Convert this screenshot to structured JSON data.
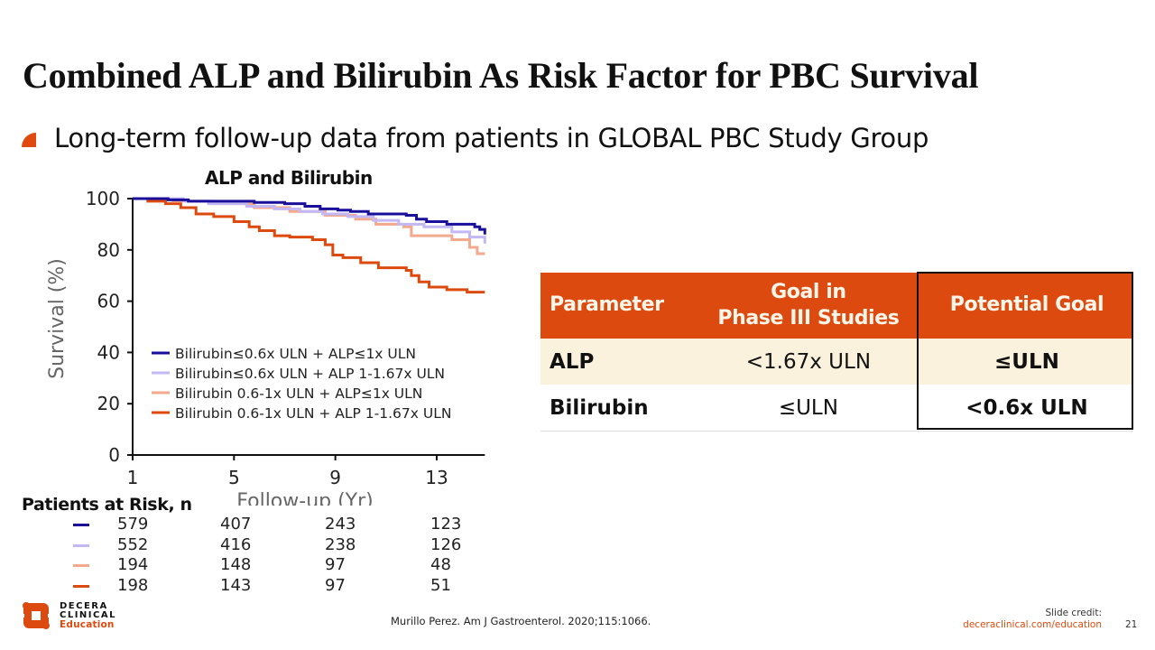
{
  "slide": {
    "title": "Combined ALP and Bilirubin As Risk Factor for PBC Survival",
    "bullet": "Long-term follow-up data from patients in GLOBAL PBC Study Group",
    "citation": "Murillo Perez. Am J Gastroenterol. 2020;115:1066.",
    "credit_label": "Slide credit:",
    "credit_url": "deceraclinical.com/education",
    "page_number": "21",
    "logo": {
      "line1": "DECERA",
      "line2": "CLINICAL",
      "line3": "Education"
    },
    "accent_color": "#dd4a0f"
  },
  "chart_data": {
    "type": "line",
    "subtype": "kaplan-meier-step",
    "title": "ALP and Bilirubin",
    "xlabel": "Follow-up (Yr)",
    "ylabel": "Survival (%)",
    "xlim": [
      1,
      14.9
    ],
    "ylim": [
      0,
      100
    ],
    "x_ticks": [
      1,
      5,
      9,
      13
    ],
    "y_ticks": [
      0,
      20,
      40,
      60,
      80,
      100
    ],
    "grid": false,
    "legend_position": "bottom-left inside",
    "series": [
      {
        "name": "Bilirubin≤0.6x ULN + ALP≤1x ULN",
        "color": "#1a0f9a",
        "x": [
          1,
          2.4,
          3.2,
          5.8,
          7.0,
          7.8,
          8.4,
          9.1,
          9.6,
          10.3,
          11.8,
          12.2,
          12.6,
          13.4,
          14.5,
          14.7,
          14.9
        ],
        "y": [
          100,
          99.5,
          99,
          98.5,
          98,
          97,
          96,
          95.5,
          95,
          94,
          93.5,
          92,
          91,
          90,
          89,
          88,
          86
        ]
      },
      {
        "name": "Bilirubin≤0.6x ULN + ALP 1-1.67x ULN",
        "color": "#c3b8f3",
        "x": [
          1,
          3.0,
          4.0,
          5.5,
          6.6,
          7.6,
          8.5,
          9.5,
          10.5,
          11.5,
          12.5,
          13.6,
          14.3,
          14.9
        ],
        "y": [
          100,
          99,
          98,
          97,
          96,
          95,
          94,
          93,
          91.5,
          90,
          89,
          87,
          85,
          82.5
        ]
      },
      {
        "name": "Bilirubin 0.6-1x ULN + ALP≤1x ULN",
        "color": "#f2a98d",
        "x": [
          1,
          2.6,
          4.2,
          5.8,
          7.2,
          8.6,
          9.8,
          10.6,
          11.7,
          12.0,
          13.6,
          14.3,
          14.6,
          14.9
        ],
        "y": [
          100,
          99,
          98,
          96.5,
          95,
          93.5,
          92,
          90,
          89,
          85.5,
          84,
          81,
          78.5,
          78.5
        ]
      },
      {
        "name": "Bilirubin 0.6-1x ULN + ALP 1-1.67x ULN",
        "color": "#dd4a0f",
        "x": [
          1,
          1.6,
          2.3,
          2.9,
          3.5,
          4.2,
          5.0,
          5.6,
          6.0,
          6.6,
          7.2,
          8.1,
          8.6,
          8.9,
          9.3,
          10.0,
          10.7,
          11.8,
          12.0,
          12.3,
          12.7,
          13.4,
          14.2,
          14.9
        ],
        "y": [
          100,
          99,
          98,
          96.5,
          94,
          93,
          91,
          89,
          87.5,
          85.5,
          85,
          84,
          82,
          78,
          77,
          75,
          73,
          72,
          70,
          67.5,
          65.5,
          64.5,
          63.5,
          63.5
        ]
      }
    ],
    "at_risk": {
      "title": "Patients at Risk, n",
      "timepoints": [
        1,
        5,
        9,
        13
      ],
      "rows": [
        {
          "color": "#1a0f9a",
          "values": [
            "579",
            "407",
            "243",
            "123"
          ]
        },
        {
          "color": "#c3b8f3",
          "values": [
            "552",
            "416",
            "238",
            "126"
          ]
        },
        {
          "color": "#f2a98d",
          "values": [
            "194",
            "148",
            "97",
            "48"
          ]
        },
        {
          "color": "#dd4a0f",
          "values": [
            "198",
            "143",
            "97",
            "51"
          ]
        }
      ]
    }
  },
  "goals_table": {
    "headers": [
      "Parameter",
      "Goal in\nPhase III Studies",
      "Potential Goal"
    ],
    "rows": [
      {
        "parameter": "ALP",
        "phase3_goal": "<1.67x ULN",
        "potential_goal": "≤ULN"
      },
      {
        "parameter": "Bilirubin",
        "phase3_goal": "≤ULN",
        "potential_goal": "<0.6x ULN"
      }
    ]
  }
}
